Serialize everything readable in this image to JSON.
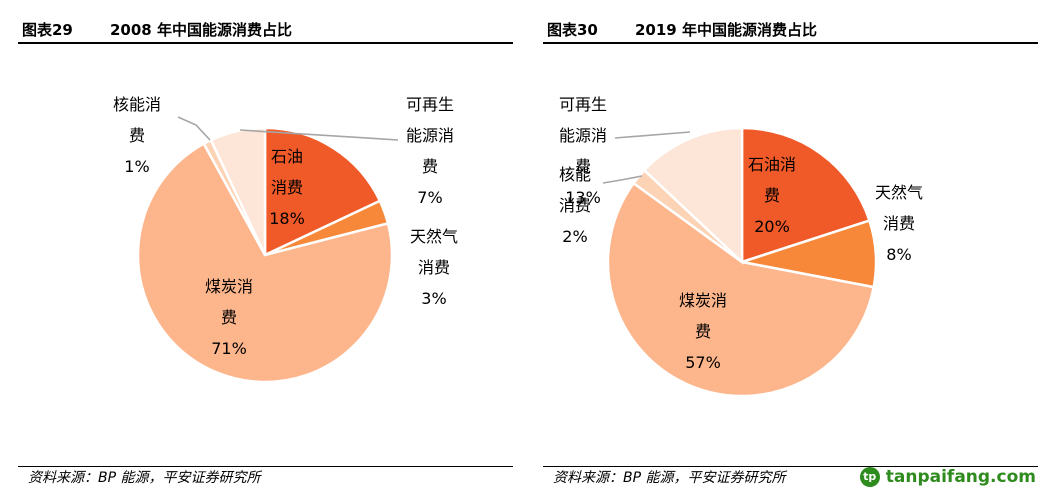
{
  "watermark": {
    "text": "tanpaifang.com",
    "icon": "leaf-logo-icon",
    "color": "#2e8b1e"
  },
  "source_text": "资料来源：BP 能源，平安证券研究所",
  "colors": {
    "oil": "#f05a28",
    "gas": "#f7883a",
    "coal": "#fdb58b",
    "nuclear": "#fdd3b6",
    "renewable": "#fde6d8",
    "leader": "#a6a6a6"
  },
  "chart_data": [
    {
      "type": "pie",
      "figure_no": "图表29",
      "title": "2008 年中国能源消费占比",
      "slices": [
        {
          "key": "oil",
          "label_lines": [
            "石油",
            "消费"
          ],
          "value": 18,
          "value_text": "18%",
          "label_placement": "inside"
        },
        {
          "key": "gas",
          "label_lines": [
            "天然气",
            "消费"
          ],
          "value": 3,
          "value_text": "3%",
          "label_placement": "outside-right"
        },
        {
          "key": "coal",
          "label_lines": [
            "煤炭消",
            "费"
          ],
          "value": 71,
          "value_text": "71%",
          "label_placement": "inside"
        },
        {
          "key": "nuclear",
          "label_lines": [
            "核能消",
            "费"
          ],
          "value": 1,
          "value_text": "1%",
          "label_placement": "outside-top-left"
        },
        {
          "key": "renewable",
          "label_lines": [
            "可再生",
            "能源消",
            "费"
          ],
          "value": 7,
          "value_text": "7%",
          "label_placement": "outside-top-right"
        }
      ]
    },
    {
      "type": "pie",
      "figure_no": "图表30",
      "title": "2019 年中国能源消费占比",
      "slices": [
        {
          "key": "oil",
          "label_lines": [
            "石油消",
            "费"
          ],
          "value": 20,
          "value_text": "20%",
          "label_placement": "inside"
        },
        {
          "key": "gas",
          "label_lines": [
            "天然气",
            "消费"
          ],
          "value": 8,
          "value_text": "8%",
          "label_placement": "outside-right"
        },
        {
          "key": "coal",
          "label_lines": [
            "煤炭消",
            "费"
          ],
          "value": 57,
          "value_text": "57%",
          "label_placement": "inside"
        },
        {
          "key": "nuclear",
          "label_lines": [
            "核能",
            "消费"
          ],
          "value": 2,
          "value_text": "2%",
          "label_placement": "outside-left"
        },
        {
          "key": "renewable",
          "label_lines": [
            "可再生",
            "能源消",
            "费"
          ],
          "value": 13,
          "value_text": "13%",
          "label_placement": "outside-top-left"
        }
      ]
    }
  ]
}
